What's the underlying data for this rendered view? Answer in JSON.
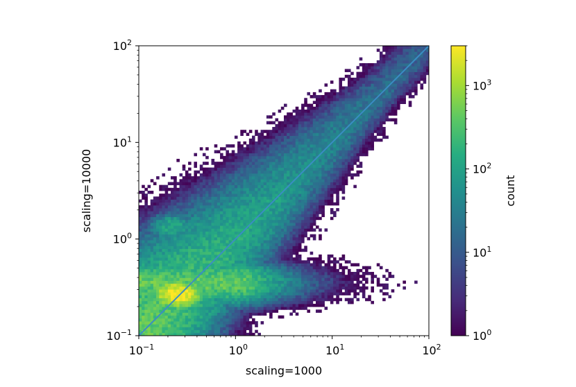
{
  "chart_data": {
    "type": "heatmap",
    "subtype": "2d-histogram",
    "xlabel": "scaling=1000",
    "ylabel": "scaling=10000",
    "xscale": "log",
    "yscale": "log",
    "xlim": [
      0.1,
      100
    ],
    "ylim": [
      0.1,
      100
    ],
    "x_ticks": [
      {
        "value": 0.1,
        "base": "10",
        "exp": "−1"
      },
      {
        "value": 1,
        "base": "10",
        "exp": "0"
      },
      {
        "value": 10,
        "base": "10",
        "exp": "1"
      },
      {
        "value": 100,
        "base": "10",
        "exp": "2"
      }
    ],
    "y_ticks": [
      {
        "value": 0.1,
        "base": "10",
        "exp": "−1"
      },
      {
        "value": 1,
        "base": "10",
        "exp": "0"
      },
      {
        "value": 10,
        "base": "10",
        "exp": "1"
      },
      {
        "value": 100,
        "base": "10",
        "exp": "2"
      }
    ],
    "bins": [
      100,
      100
    ],
    "density_regions": [
      {
        "x": 0.25,
        "y": 0.27,
        "peak_count": 3000
      },
      {
        "x": 0.5,
        "y": 0.35,
        "peak_count": 300
      },
      {
        "x": 0.22,
        "y": 1.35,
        "peak_count": 120
      },
      {
        "x": 2.5,
        "y": 2.5,
        "peak_count": 100
      }
    ],
    "reference_line": {
      "type": "y=x",
      "from": [
        0.1,
        0.1
      ],
      "to": [
        100,
        100
      ],
      "color": "#3a8dc4"
    },
    "colorbar": {
      "label": "count",
      "scale": "log",
      "range": [
        1,
        3000
      ],
      "colormap": "viridis",
      "ticks": [
        {
          "value": 1,
          "base": "10",
          "exp": "0"
        },
        {
          "value": 10,
          "base": "10",
          "exp": "1"
        },
        {
          "value": 100,
          "base": "10",
          "exp": "2"
        },
        {
          "value": 1000,
          "base": "10",
          "exp": "3"
        }
      ]
    },
    "grid": false,
    "legend": "none"
  }
}
